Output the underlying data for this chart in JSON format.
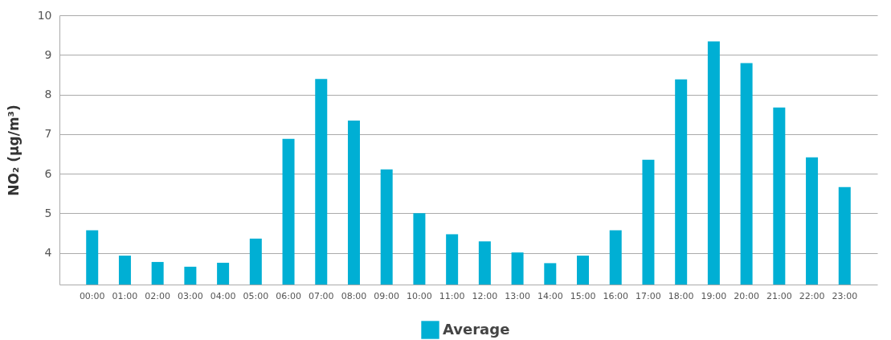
{
  "chart_data": {
    "type": "bar",
    "ylabel": "NO₂  (µg/m³)",
    "categories": [
      "00:00",
      "01:00",
      "02:00",
      "03:00",
      "04:00",
      "05:00",
      "06:00",
      "07:00",
      "08:00",
      "09:00",
      "10:00",
      "11:00",
      "12:00",
      "13:00",
      "14:00",
      "15:00",
      "16:00",
      "17:00",
      "18:00",
      "19:00",
      "20:00",
      "21:00",
      "22:00",
      "23:00"
    ],
    "series": [
      {
        "name": "Average",
        "color": "#00afd4",
        "values": [
          4.57,
          3.93,
          3.77,
          3.65,
          3.75,
          4.36,
          6.88,
          8.39,
          7.34,
          6.11,
          5.0,
          4.47,
          4.29,
          4.01,
          3.74,
          3.93,
          4.57,
          6.35,
          8.38,
          9.34,
          8.79,
          7.67,
          6.41,
          5.66
        ]
      }
    ],
    "ylim": [
      3.2,
      10
    ],
    "yticks": [
      4,
      5,
      6,
      7,
      8,
      9,
      10
    ],
    "grid": "y",
    "legend": "bottom"
  }
}
